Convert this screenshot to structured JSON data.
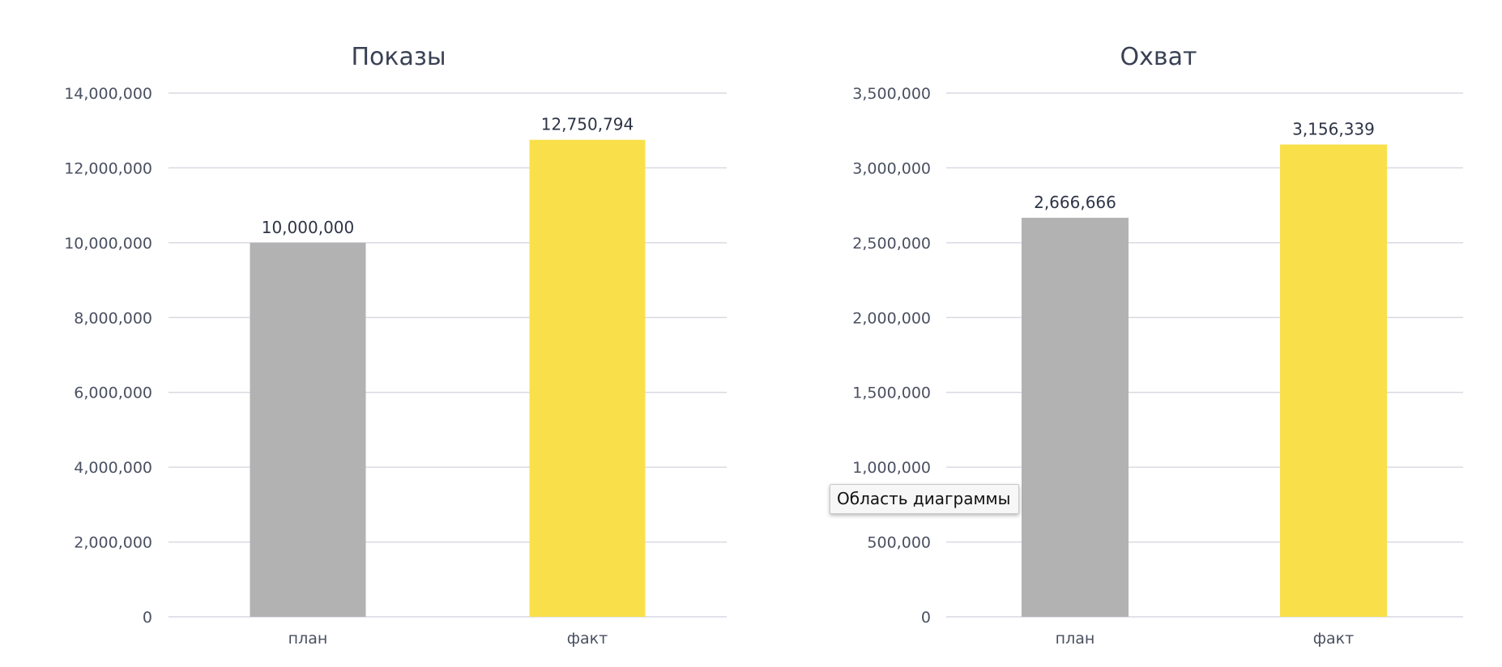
{
  "chart_data": [
    {
      "type": "bar",
      "title": "Показы",
      "categories": [
        "план",
        "факт"
      ],
      "values": [
        10000000,
        12750794
      ],
      "value_labels": [
        "10,000,000",
        "12,750,794"
      ],
      "colors": [
        "#b2b2b2",
        "#f9e04b"
      ],
      "ylim": [
        0,
        14000000
      ],
      "yticks": [
        0,
        2000000,
        4000000,
        6000000,
        8000000,
        10000000,
        12000000,
        14000000
      ],
      "ytick_labels": [
        "0",
        "2,000,000",
        "4,000,000",
        "6,000,000",
        "8,000,000",
        "10,000,000",
        "12,000,000",
        "14,000,000"
      ],
      "grid": true,
      "legend": "none"
    },
    {
      "type": "bar",
      "title": "Охват",
      "categories": [
        "план",
        "факт"
      ],
      "values": [
        2666666,
        3156339
      ],
      "value_labels": [
        "2,666,666",
        "3,156,339"
      ],
      "colors": [
        "#b2b2b2",
        "#f9e04b"
      ],
      "ylim": [
        0,
        3500000
      ],
      "yticks": [
        0,
        500000,
        1000000,
        1500000,
        2000000,
        2500000,
        3000000,
        3500000
      ],
      "ytick_labels": [
        "0",
        "500,000",
        "1,000,000",
        "1,500,000",
        "2,000,000",
        "2,500,000",
        "3,000,000",
        "3,500,000"
      ],
      "grid": true,
      "legend": "none"
    }
  ],
  "tooltip": {
    "text": "Область диаграммы"
  }
}
